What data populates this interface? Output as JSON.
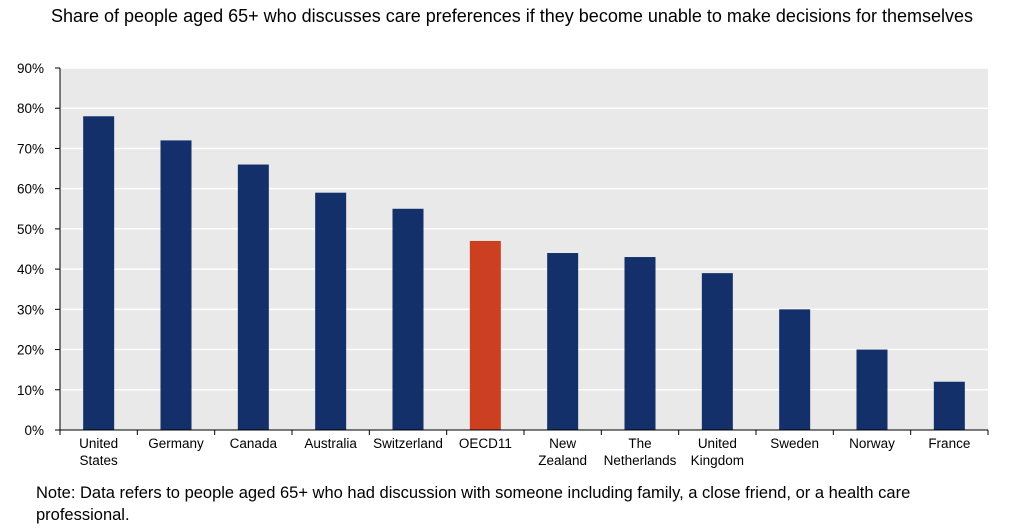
{
  "chart_data": {
    "type": "bar",
    "title": "Share of people aged 65+ who discusses care preferences if they become unable to make decisions for themselves",
    "xlabel": "",
    "ylabel": "",
    "categories": [
      [
        "United",
        "States"
      ],
      [
        "Germany"
      ],
      [
        "Canada"
      ],
      [
        "Australia"
      ],
      [
        "Switzerland"
      ],
      [
        "OECD11"
      ],
      [
        "New",
        "Zealand"
      ],
      [
        "The",
        "Netherlands"
      ],
      [
        "United",
        "Kingdom"
      ],
      [
        "Sweden"
      ],
      [
        "Norway"
      ],
      [
        "France"
      ]
    ],
    "values": [
      78,
      72,
      66,
      59,
      55,
      47,
      44,
      43,
      39,
      30,
      20,
      12
    ],
    "highlight_category_index": 5,
    "ylim": [
      0,
      90
    ],
    "yticks": [
      0,
      10,
      20,
      30,
      40,
      50,
      60,
      70,
      80,
      90
    ],
    "ytick_labels": [
      "0%",
      "10%",
      "20%",
      "30%",
      "40%",
      "50%",
      "60%",
      "70%",
      "80%",
      "90%"
    ],
    "grid": true,
    "legend": "none",
    "colors": {
      "bar": "#14306a",
      "highlight": "#cc3f21",
      "plot_background": "#e9e9e9",
      "gridline": "#ffffff",
      "axis": "#000000"
    }
  },
  "note": "Note: Data refers to people aged 65+ who had discussion with someone including family, a close friend, or a health care professional."
}
